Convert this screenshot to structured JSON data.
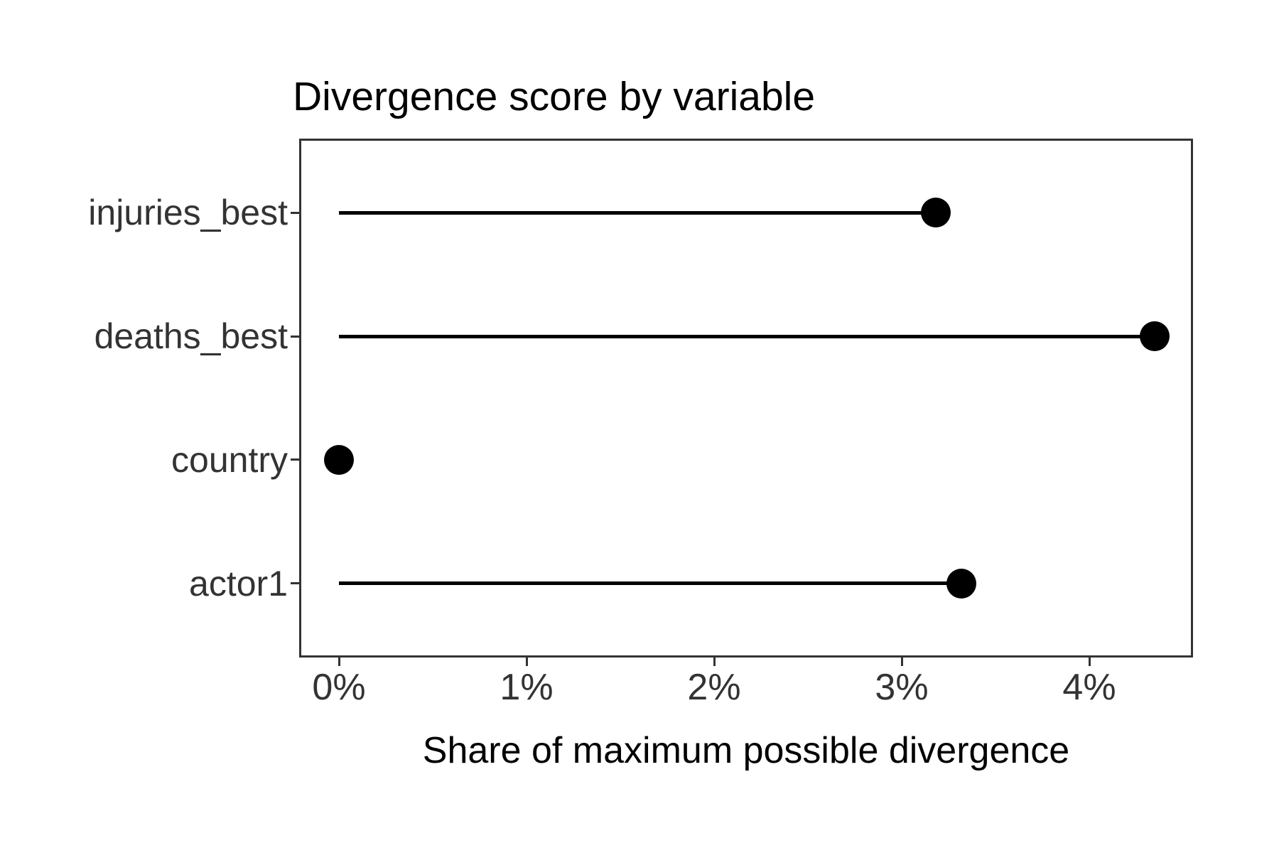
{
  "title": "Divergence score by variable",
  "x_axis_title": "Share of maximum possible divergence",
  "chart_data": {
    "type": "bar",
    "variant": "lollipop",
    "orientation": "horizontal",
    "title": "Divergence score by variable",
    "xlabel": "Share of maximum possible divergence",
    "ylabel": "",
    "categories": [
      "injuries_best",
      "deaths_best",
      "country",
      "actor1"
    ],
    "values": [
      3.18,
      4.35,
      0.0,
      3.32
    ],
    "unit": "%",
    "xlim": [
      0,
      4.55
    ],
    "x_tick_values": [
      0,
      1,
      2,
      3,
      4
    ],
    "x_tick_labels": [
      "0%",
      "1%",
      "2%",
      "3%",
      "4%"
    ],
    "grid": false,
    "legend": "none",
    "colors": {
      "point": "#000000",
      "stem": "#000000",
      "panel_border": "#333333",
      "axis_text": "#333333",
      "title_text": "#000000",
      "background": "#ffffff"
    }
  }
}
